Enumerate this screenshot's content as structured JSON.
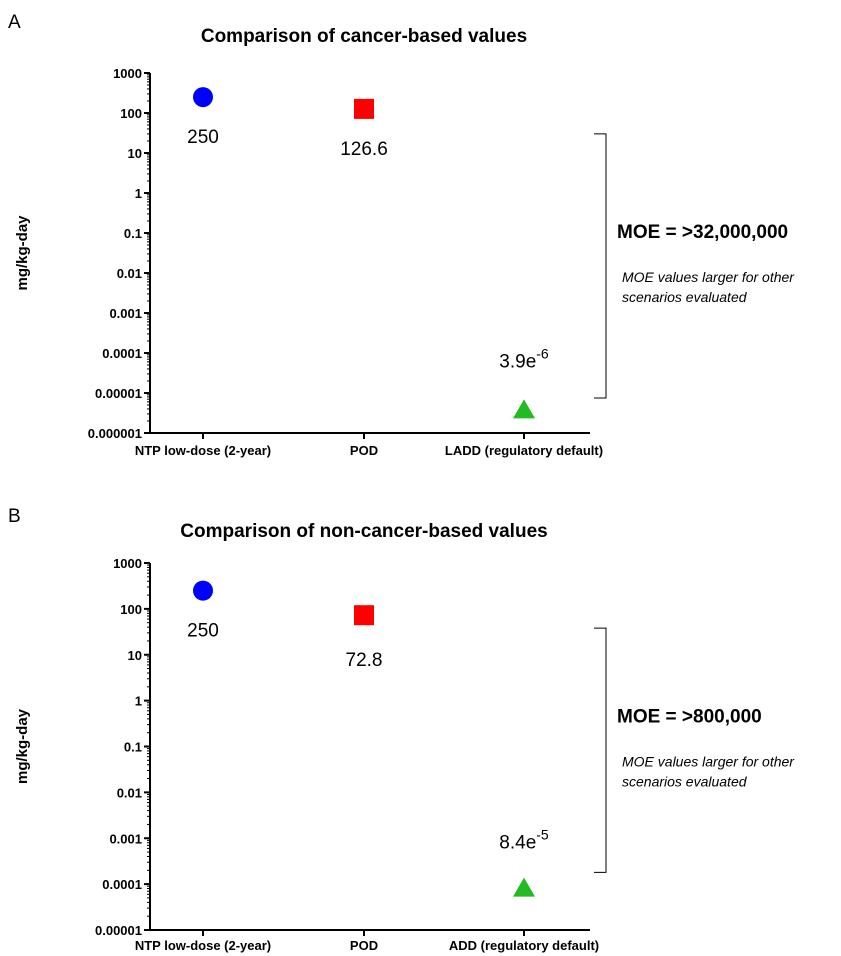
{
  "chart_data": [
    {
      "panel": "A",
      "type": "scatter",
      "title": "Comparison of cancer-based values",
      "ylabel": "mg/kg-day",
      "yscale": "log",
      "ylim": [
        1e-06,
        1000
      ],
      "yticks": [
        "1000",
        "100",
        "10",
        "1",
        "0.1",
        "0.01",
        "0.001",
        "0.0001",
        "0.00001",
        "0.000001"
      ],
      "categories": [
        "NTP low-dose (2-year)",
        "POD",
        "LADD (regulatory default)"
      ],
      "points": [
        {
          "category": "NTP low-dose (2-year)",
          "value": 250,
          "label": "250",
          "marker": "circle",
          "color": "#0000ff"
        },
        {
          "category": "POD",
          "value": 126.6,
          "label": "126.6",
          "marker": "square",
          "color": "#ff0000"
        },
        {
          "category": "LADD (regulatory default)",
          "value": 3.9e-06,
          "label_base": "3.9e",
          "label_exp": "-6",
          "marker": "triangle",
          "color": "#22bb22"
        }
      ],
      "bracket_range": [
        30,
        7.5e-06
      ],
      "moe_text": "MOE = >32,000,000",
      "note_lines": [
        "MOE values larger for other",
        "scenarios evaluated"
      ]
    },
    {
      "panel": "B",
      "type": "scatter",
      "title": "Comparison of non-cancer-based values",
      "ylabel": "mg/kg-day",
      "yscale": "log",
      "ylim": [
        1e-05,
        1000
      ],
      "yticks": [
        "1000",
        "100",
        "10",
        "1",
        "0.1",
        "0.01",
        "0.001",
        "0.0001",
        "0.00001"
      ],
      "categories": [
        "NTP low-dose (2-year)",
        "POD",
        "ADD (regulatory default)"
      ],
      "points": [
        {
          "category": "NTP low-dose (2-year)",
          "value": 250,
          "label": "250",
          "marker": "circle",
          "color": "#0000ff"
        },
        {
          "category": "POD",
          "value": 72.8,
          "label": "72.8",
          "marker": "square",
          "color": "#ff0000"
        },
        {
          "category": "ADD (regulatory default)",
          "value": 8.4e-05,
          "label_base": "8.4e",
          "label_exp": "-5",
          "marker": "triangle",
          "color": "#22bb22"
        }
      ],
      "bracket_range": [
        38,
        0.00018
      ],
      "moe_text": "MOE = >800,000",
      "note_lines": [
        "MOE values larger for other",
        "scenarios evaluated"
      ]
    }
  ]
}
